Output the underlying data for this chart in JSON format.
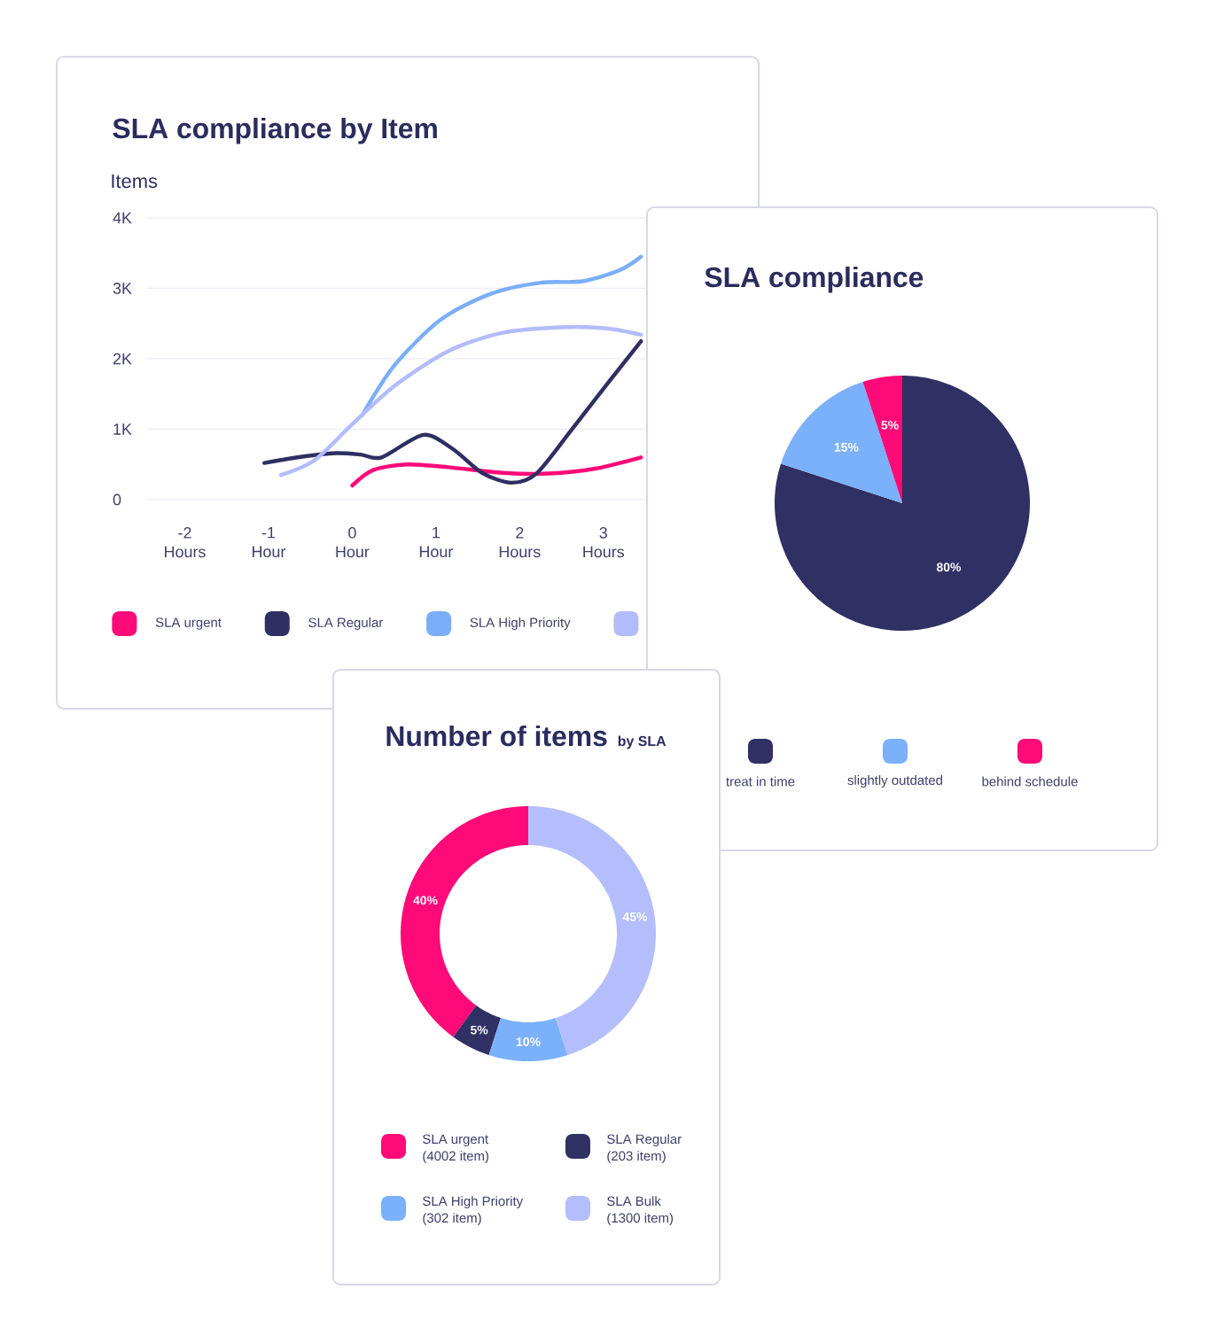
{
  "chart_data": [
    {
      "type": "line",
      "title": "SLA compliance by Item",
      "ylabel": "Items",
      "xlim": [
        -2.45,
        3.5
      ],
      "ylim": [
        0,
        4000
      ],
      "xticks": [
        {
          "value": -2,
          "label": "-2 Hours"
        },
        {
          "value": -1,
          "label": "-1 Hour"
        },
        {
          "value": 0,
          "label": "0 Hour"
        },
        {
          "value": 1,
          "label": "1 Hour"
        },
        {
          "value": 2,
          "label": "2 Hours"
        },
        {
          "value": 3,
          "label": "3 Hours"
        }
      ],
      "yticks": [
        0,
        {
          "value": 1000,
          "label": "1K"
        },
        {
          "value": 2000,
          "label": "2K"
        },
        {
          "value": 3000,
          "label": "3K"
        },
        {
          "value": 4000,
          "label": "4K"
        }
      ],
      "grid": "y",
      "legend": "bottom",
      "series": [
        {
          "name": "SLA urgent",
          "color": "#ff0a78",
          "x": [
            0,
            0.25,
            0.65,
            1.15,
            1.8,
            2.35,
            2.9,
            3.45
          ],
          "values": [
            200,
            420,
            500,
            460,
            380,
            370,
            440,
            600
          ]
        },
        {
          "name": "SLA Regular",
          "color": "#2e2f62",
          "x": [
            -1.05,
            -0.6,
            -0.2,
            0.1,
            0.35,
            0.85,
            1.2,
            1.55,
            1.9,
            2.2,
            2.6,
            3.05,
            3.45
          ],
          "values": [
            520,
            610,
            660,
            640,
            600,
            920,
            720,
            380,
            240,
            370,
            960,
            1650,
            2250
          ]
        },
        {
          "name": "SLA High Priority",
          "color": "#7aaef8",
          "x": [
            0.12,
            0.5,
            1.05,
            1.65,
            2.25,
            2.75,
            3.2,
            3.45
          ],
          "values": [
            1200,
            1900,
            2550,
            2920,
            3080,
            3100,
            3260,
            3450
          ]
        },
        {
          "color": "#b3bcfa",
          "x": [
            -0.85,
            -0.45,
            0,
            0.5,
            1.15,
            1.8,
            2.55,
            3.05,
            3.45
          ],
          "values": [
            350,
            560,
            1070,
            1610,
            2110,
            2370,
            2450,
            2430,
            2340
          ]
        }
      ]
    },
    {
      "type": "pie",
      "title": "SLA compliance",
      "categories": [
        "treat in time",
        "slightly outdated",
        "behind schedule"
      ],
      "values": [
        80,
        15,
        5
      ],
      "colors": [
        "#2f3063",
        "#7ab1fa",
        "#ff0a78"
      ],
      "value_labels": [
        "80%",
        "15%",
        "5%"
      ],
      "legend": "bottom"
    },
    {
      "type": "donut",
      "title": "Number of items",
      "subtitle": "by SLA",
      "categories": [
        "SLA urgent",
        "SLA Regular",
        "SLA High Priority",
        "SLA Bulk"
      ],
      "values": [
        40,
        5,
        10,
        45
      ],
      "colors": [
        "#ff0a78",
        "#2f3063",
        "#7ab1fa",
        "#b4befc"
      ],
      "value_labels": [
        "40%",
        "5%",
        "10%",
        "45%"
      ],
      "annotations": [
        "(4002 item)",
        "(203 item)",
        "(302 item)",
        "(1300 item)"
      ],
      "legend": "bottom"
    }
  ]
}
